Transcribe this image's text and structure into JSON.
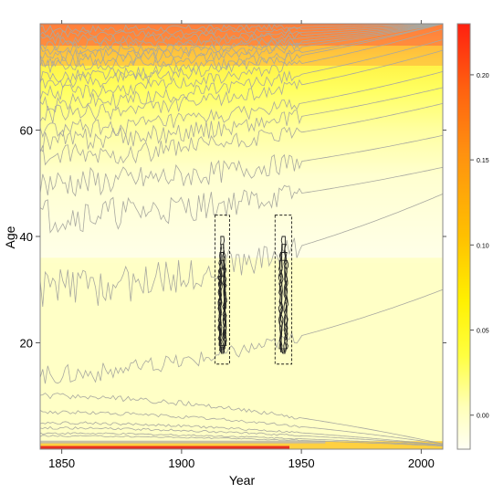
{
  "chart_data": {
    "type": "heatmap",
    "title": "",
    "xlabel": "Year",
    "ylabel": "Age",
    "xlim": [
      1841,
      2009
    ],
    "ylim": [
      0,
      80
    ],
    "x_ticks": [
      1850,
      1900,
      1950,
      2000
    ],
    "y_ticks": [
      20,
      40,
      60
    ],
    "x_tick_labels": [
      "1850",
      "1900",
      "1950",
      "2000"
    ],
    "y_tick_labels": [
      "20",
      "40",
      "60"
    ],
    "colorbar": {
      "range": [
        -0.02,
        0.23
      ],
      "ticks": [
        0.0,
        0.05,
        0.1,
        0.15,
        0.2
      ],
      "tick_labels": [
        "0.00",
        "0.05",
        "0.10",
        "0.15",
        "0.20"
      ],
      "colors": [
        "#FFFFF0",
        "#FFFFB0",
        "#FFFF60",
        "#FFEA30",
        "#FFB820",
        "#FF8010",
        "#FF4010",
        "#FF1010"
      ]
    },
    "highlight_boxes": [
      {
        "x": [
          1914,
          1920
        ],
        "y": [
          16,
          44
        ]
      },
      {
        "x": [
          1939,
          1946
        ],
        "y": [
          16,
          44
        ]
      }
    ],
    "grid": false,
    "legend": "right"
  }
}
